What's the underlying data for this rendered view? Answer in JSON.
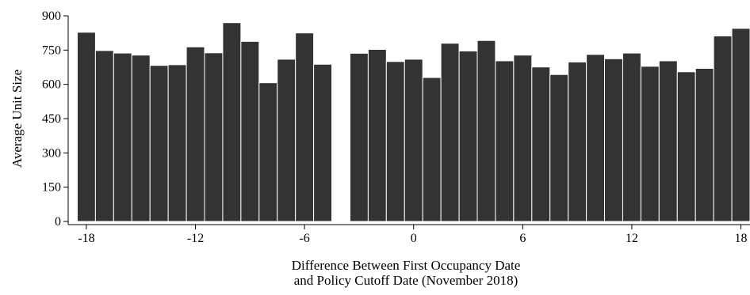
{
  "chart_data": {
    "type": "bar",
    "title": "",
    "xlabel_lines": [
      "Difference Between First Occupancy Date",
      "and Policy Cutoff Date (November 2018)"
    ],
    "ylabel": "Average Unit Size",
    "x": [
      -18,
      -17,
      -16,
      -15,
      -14,
      -13,
      -12,
      -11,
      -10,
      -9,
      -8,
      -7,
      -6,
      -5,
      -3,
      -2,
      -1,
      0,
      1,
      2,
      3,
      4,
      5,
      6,
      7,
      8,
      9,
      10,
      11,
      12,
      13,
      14,
      15,
      16,
      17,
      18
    ],
    "values": [
      828,
      748,
      737,
      728,
      683,
      686,
      764,
      738,
      870,
      788,
      607,
      710,
      825,
      688,
      736,
      753,
      700,
      710,
      630,
      780,
      746,
      792,
      703,
      728,
      676,
      643,
      698,
      731,
      712,
      737,
      679,
      703,
      655,
      670,
      812,
      845
    ],
    "xlim": [
      -19,
      18.5
    ],
    "ylim": [
      0,
      900
    ],
    "xticks": [
      -18,
      -12,
      -6,
      0,
      6,
      12,
      18
    ],
    "yticks": [
      0,
      150,
      300,
      450,
      600,
      750,
      900
    ],
    "grid": false,
    "bar_color": "#333333"
  }
}
